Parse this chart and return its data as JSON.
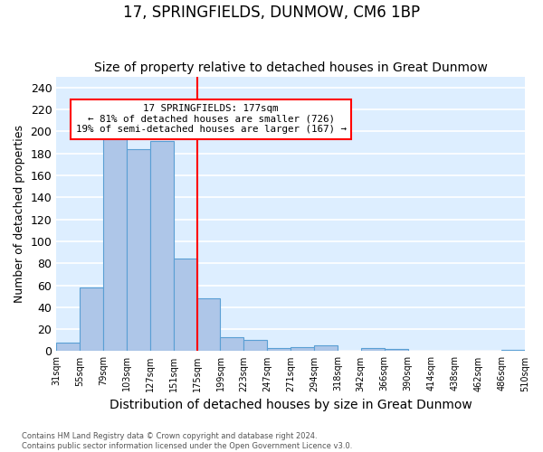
{
  "title": "17, SPRINGFIELDS, DUNMOW, CM6 1BP",
  "subtitle": "Size of property relative to detached houses in Great Dunmow",
  "xlabel": "Distribution of detached houses by size in Great Dunmow",
  "ylabel": "Number of detached properties",
  "bar_labels": [
    "31sqm",
    "55sqm",
    "79sqm",
    "103sqm",
    "127sqm",
    "151sqm",
    "175sqm",
    "199sqm",
    "223sqm",
    "247sqm",
    "271sqm",
    "294sqm",
    "318sqm",
    "342sqm",
    "366sqm",
    "390sqm",
    "414sqm",
    "438sqm",
    "462sqm",
    "486sqm",
    "510sqm"
  ],
  "bar_values": [
    8,
    58,
    200,
    184,
    191,
    84,
    48,
    13,
    10,
    3,
    4,
    5,
    0,
    3,
    2,
    0,
    0,
    0,
    0,
    1
  ],
  "bar_color": "#aec6e8",
  "bar_edgecolor": "#5a9fd4",
  "vline_color": "red",
  "vline_bar_index": 6,
  "annotation_text": "17 SPRINGFIELDS: 177sqm\n← 81% of detached houses are smaller (726)\n19% of semi-detached houses are larger (167) →",
  "annotation_box_edgecolor": "red",
  "annotation_box_facecolor": "white",
  "footer_text": "Contains HM Land Registry data © Crown copyright and database right 2024.\nContains public sector information licensed under the Open Government Licence v3.0.",
  "ylim": [
    0,
    250
  ],
  "yticks": [
    0,
    20,
    40,
    60,
    80,
    100,
    120,
    140,
    160,
    180,
    200,
    220,
    240
  ],
  "bg_color": "#ddeeff",
  "grid_color": "white",
  "title_fontsize": 12,
  "subtitle_fontsize": 10,
  "xlabel_fontsize": 10,
  "ylabel_fontsize": 9
}
